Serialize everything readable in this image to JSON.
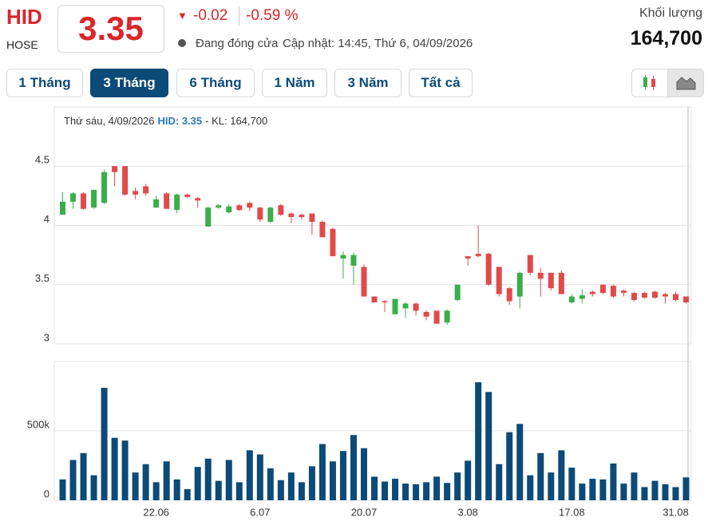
{
  "header": {
    "symbol": "HID",
    "exchange": "HOSE",
    "price": "3.35",
    "change": "-0.02",
    "change_pct": "-0.59 %",
    "status": "Đang đóng cửa",
    "updated": "Cập nhật: 14:45, Thứ 6, 04/09/2026",
    "volume_label": "Khối lượng",
    "volume": "164,700"
  },
  "tabs": [
    "1 Tháng",
    "3 Tháng",
    "6 Tháng",
    "1 Năm",
    "3 Năm",
    "Tất cả"
  ],
  "tooltip": {
    "date": "Thứ sáu, 4/09/2026",
    "price": "HID: 3.35",
    "volume": "- KL: 164,700"
  },
  "chart_data": [
    {
      "type": "candlestick",
      "up_color": "#3aae4a",
      "down_color": "#e04a4a",
      "grid": true,
      "ylim": [
        3,
        5
      ],
      "yticks": [
        3,
        3.5,
        4,
        4.5
      ],
      "open": [
        4.09,
        4.2,
        4.27,
        4.15,
        4.19,
        4.5,
        4.5,
        4.29,
        4.33,
        4.15,
        4.27,
        4.13,
        4.26,
        4.23,
        3.99,
        4.15,
        4.11,
        4.17,
        4.19,
        4.15,
        4.03,
        4.17,
        4.1,
        4.09,
        4.1,
        4.03,
        3.97,
        3.72,
        3.66,
        3.65,
        3.4,
        3.36,
        3.25,
        3.3,
        3.34,
        3.27,
        3.28,
        3.18,
        3.37,
        3.74,
        3.76,
        3.76,
        3.65,
        3.47,
        3.4,
        3.75,
        3.6,
        3.6,
        3.6,
        3.35,
        3.38,
        3.44,
        3.5,
        3.49,
        3.45,
        3.43,
        3.43,
        3.44,
        3.42,
        3.42,
        3.4
      ],
      "high": [
        4.28,
        4.28,
        4.28,
        4.3,
        4.47,
        4.5,
        4.5,
        4.32,
        4.35,
        4.25,
        4.28,
        4.27,
        4.27,
        4.24,
        4.16,
        4.18,
        4.18,
        4.18,
        4.2,
        4.16,
        4.16,
        4.18,
        4.11,
        4.1,
        4.1,
        4.04,
        3.98,
        3.78,
        3.77,
        3.67,
        3.4,
        3.37,
        3.38,
        3.35,
        3.35,
        3.28,
        3.28,
        3.29,
        3.5,
        3.74,
        4.0,
        3.77,
        3.65,
        3.48,
        3.61,
        3.75,
        3.64,
        3.6,
        3.62,
        3.42,
        3.46,
        3.45,
        3.5,
        3.5,
        3.46,
        3.44,
        3.44,
        3.45,
        3.43,
        3.44,
        3.4
      ],
      "low": [
        4.09,
        4.14,
        4.13,
        4.14,
        4.18,
        4.33,
        4.25,
        4.22,
        4.25,
        4.15,
        4.14,
        4.1,
        4.23,
        4.15,
        3.99,
        4.14,
        4.1,
        4.12,
        4.12,
        4.03,
        4.02,
        4.08,
        4.02,
        4.05,
        3.92,
        3.9,
        3.74,
        3.55,
        3.5,
        3.4,
        3.35,
        3.27,
        3.25,
        3.22,
        3.24,
        3.2,
        3.17,
        3.16,
        3.36,
        3.66,
        3.73,
        3.49,
        3.4,
        3.33,
        3.3,
        3.58,
        3.4,
        3.45,
        3.42,
        3.34,
        3.34,
        3.4,
        3.42,
        3.39,
        3.4,
        3.36,
        3.38,
        3.38,
        3.34,
        3.36,
        3.34
      ],
      "close": [
        4.2,
        4.27,
        4.14,
        4.3,
        4.45,
        4.45,
        4.26,
        4.26,
        4.27,
        4.22,
        4.14,
        4.26,
        4.24,
        4.21,
        4.15,
        4.17,
        4.16,
        4.13,
        4.15,
        4.05,
        4.15,
        4.09,
        4.07,
        4.07,
        4.03,
        3.9,
        3.74,
        3.75,
        3.75,
        3.4,
        3.35,
        3.35,
        3.38,
        3.34,
        3.28,
        3.23,
        3.17,
        3.28,
        3.5,
        3.72,
        3.74,
        3.5,
        3.42,
        3.36,
        3.6,
        3.6,
        3.55,
        3.47,
        3.42,
        3.4,
        3.41,
        3.42,
        3.43,
        3.4,
        3.43,
        3.37,
        3.39,
        3.39,
        3.4,
        3.37,
        3.35
      ]
    },
    {
      "type": "bar",
      "color": "#0c4a78",
      "grid": true,
      "ylim": [
        0,
        1000000
      ],
      "yticks": [
        0,
        {
          "value": 500000,
          "label": "500k"
        }
      ],
      "categories": [
        null,
        null,
        null,
        null,
        null,
        null,
        null,
        null,
        null,
        "22.06",
        null,
        null,
        null,
        null,
        null,
        null,
        null,
        null,
        null,
        "6.07",
        null,
        null,
        null,
        null,
        null,
        null,
        null,
        null,
        null,
        "20.07",
        null,
        null,
        null,
        null,
        null,
        null,
        null,
        null,
        null,
        "3.08",
        null,
        null,
        null,
        null,
        null,
        null,
        null,
        null,
        null,
        "17.08",
        null,
        null,
        null,
        null,
        null,
        null,
        null,
        null,
        null,
        "31.08",
        null
      ],
      "values": [
        150000,
        290000,
        340000,
        180000,
        810000,
        450000,
        430000,
        200000,
        260000,
        130000,
        280000,
        150000,
        80000,
        240000,
        300000,
        140000,
        290000,
        130000,
        360000,
        330000,
        230000,
        145000,
        200000,
        130000,
        245000,
        405000,
        280000,
        355000,
        470000,
        375000,
        170000,
        135000,
        155000,
        120000,
        115000,
        130000,
        170000,
        125000,
        200000,
        285000,
        850000,
        780000,
        260000,
        490000,
        550000,
        180000,
        340000,
        200000,
        360000,
        235000,
        120000,
        155000,
        150000,
        265000,
        120000,
        200000,
        95000,
        140000,
        115000,
        95000,
        165000
      ]
    }
  ]
}
